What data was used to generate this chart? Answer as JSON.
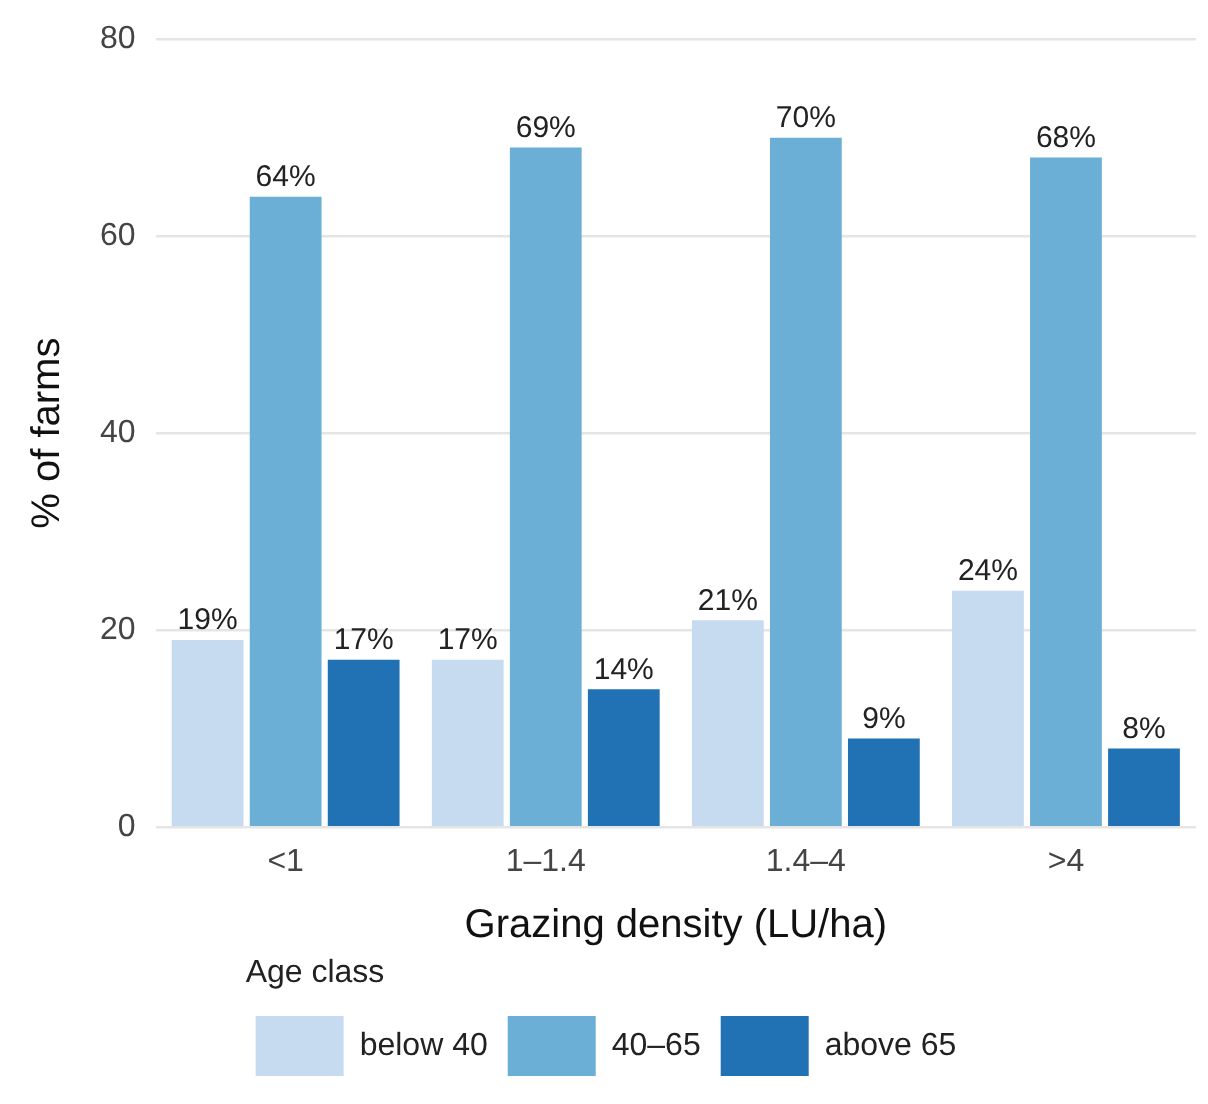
{
  "chart_data": {
    "type": "bar",
    "xlabel": "Grazing density (LU/ha)",
    "ylabel": "% of farms",
    "legend_title": "Age class",
    "categories": [
      "<1",
      "1–1.4",
      "1.4–4",
      ">4"
    ],
    "series": [
      {
        "name": "below 40",
        "color": "#c6dbef",
        "values": [
          19,
          17,
          21,
          24
        ]
      },
      {
        "name": "40–65",
        "color": "#6baed6",
        "values": [
          64,
          69,
          70,
          68
        ]
      },
      {
        "name": "above 65",
        "color": "#2171b5",
        "values": [
          17,
          14,
          9,
          8
        ]
      }
    ],
    "value_labels": [
      [
        "19%",
        "17%",
        "21%",
        "24%"
      ],
      [
        "64%",
        "69%",
        "70%",
        "68%"
      ],
      [
        "17%",
        "14%",
        "9%",
        "8%"
      ]
    ],
    "ylim": [
      0,
      80
    ],
    "yticks": [
      0,
      20,
      40,
      60,
      80
    ],
    "grid": "y",
    "legend": "bottom"
  }
}
